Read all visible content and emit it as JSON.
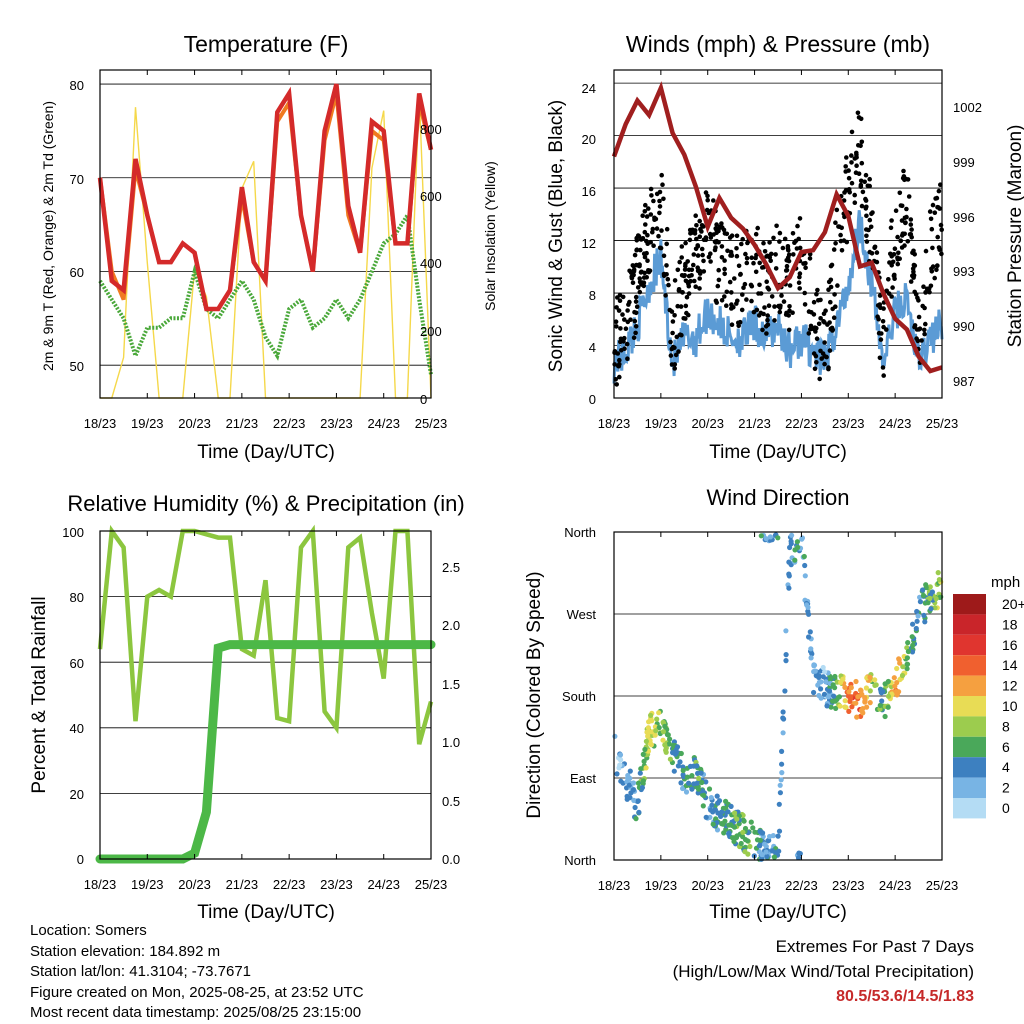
{
  "x_ticks": [
    "18/23",
    "19/23",
    "20/23",
    "21/23",
    "22/23",
    "23/23",
    "24/23",
    "25/23"
  ],
  "colors": {
    "temp2m": "#d42a2a",
    "temp9m": "#f07a20",
    "dewpoint": "#4aa83a",
    "solar": "#f5d84a",
    "sonic": "#5b9bd5",
    "gust": "#000000",
    "pressure": "#a01f1f",
    "rh": "#8cc63f",
    "rain": "#4cb847"
  },
  "charts": {
    "temperature": {
      "title": "Temperature (F)",
      "xlabel": "Time (Day/UTC)",
      "ylabel": "2m & 9m T (Red, Orange) & 2m Td (Green)",
      "y2label": "Solar Insolation (Yellow)",
      "yticks": [
        "50",
        "60",
        "70",
        "80"
      ],
      "y2ticks": [
        "0",
        "200",
        "400",
        "600",
        "800"
      ]
    },
    "winds": {
      "title": "Winds (mph) & Pressure (mb)",
      "xlabel": "Time (Day/UTC)",
      "ylabel": "Sonic Wind & Gust (Blue, Black)",
      "y2label": "Station Pressure (Maroon)",
      "yticks": [
        "0",
        "4",
        "8",
        "12",
        "16",
        "20",
        "24"
      ],
      "y2ticks": [
        "987",
        "990",
        "993",
        "996",
        "999",
        "1002"
      ]
    },
    "humidity": {
      "title": "Relative Humidity (%) & Precipitation (in)",
      "xlabel": "Time (Day/UTC)",
      "ylabel": "Percent & Total Rainfall",
      "yticks": [
        "0",
        "20",
        "40",
        "60",
        "80",
        "100"
      ],
      "y2ticks": [
        "0.0",
        "0.5",
        "1.0",
        "1.5",
        "2.0",
        "2.5"
      ]
    },
    "direction": {
      "title": "Wind Direction",
      "xlabel": "Time (Day/UTC)",
      "ylabel": "Direction (Colored By Speed)",
      "yticks": [
        "North",
        "East",
        "South",
        "West",
        "North"
      ],
      "legend_title": "mph",
      "legend_labels": [
        "20+",
        "18",
        "16",
        "14",
        "12",
        "10",
        "8",
        "6",
        "4",
        "2",
        "0"
      ],
      "legend_colors": [
        "#9e1a1a",
        "#c9252a",
        "#e0352f",
        "#f0602f",
        "#f5a040",
        "#e8dc55",
        "#9ccc4e",
        "#4aa85a",
        "#3d80c0",
        "#78b4e4",
        "#b4dcf4"
      ]
    }
  },
  "chart_data": [
    {
      "type": "line",
      "title": "Temperature (F)",
      "x": [
        0,
        0.25,
        0.5,
        0.75,
        1,
        1.25,
        1.5,
        1.75,
        2,
        2.25,
        2.5,
        2.75,
        3,
        3.25,
        3.5,
        3.75,
        4,
        4.25,
        4.5,
        4.75,
        5,
        5.25,
        5.5,
        5.75,
        6,
        6.25,
        6.5,
        6.75,
        7
      ],
      "xlim": [
        0,
        7
      ],
      "ylim": [
        46.5,
        81.5
      ],
      "y2lim": [
        0,
        970
      ],
      "series": [
        {
          "name": "2m T",
          "values": [
            70,
            59,
            58,
            72,
            66,
            61,
            61,
            63,
            62,
            56,
            56,
            58,
            69,
            61,
            59,
            77,
            79,
            66,
            60,
            75,
            80,
            67,
            62,
            76,
            75,
            63,
            63,
            79,
            73
          ]
        },
        {
          "name": "9m T",
          "values": [
            70,
            60,
            57,
            71,
            66,
            61,
            61,
            63,
            62,
            56,
            56,
            58,
            68,
            61,
            59,
            76,
            78,
            66,
            60,
            74,
            79,
            66,
            62,
            75,
            74,
            63,
            63,
            78,
            73
          ]
        },
        {
          "name": "2m Td",
          "values": [
            59,
            57,
            55,
            51,
            54,
            54,
            55,
            55,
            60,
            56,
            55,
            57,
            59,
            57,
            53,
            51,
            56,
            57,
            54,
            55,
            57,
            55,
            57,
            60,
            63,
            64,
            66,
            57,
            49
          ]
        },
        {
          "name": "Solar Insolation",
          "values": [
            0,
            0,
            120,
            860,
            400,
            0,
            0,
            0,
            380,
            300,
            0,
            0,
            620,
            700,
            0,
            0,
            0,
            0,
            0,
            0,
            0,
            0,
            0,
            680,
            850,
            0,
            0,
            900,
            0
          ]
        }
      ]
    },
    {
      "type": "line",
      "title": "Winds (mph) & Pressure (mb)",
      "x": [
        0,
        0.25,
        0.5,
        0.75,
        1,
        1.25,
        1.5,
        1.75,
        2,
        2.25,
        2.5,
        2.75,
        3,
        3.25,
        3.5,
        3.75,
        4,
        4.25,
        4.5,
        4.75,
        5,
        5.25,
        5.5,
        5.75,
        6,
        6.25,
        6.5,
        6.75,
        7
      ],
      "xlim": [
        0,
        7
      ],
      "ylim": [
        0,
        25
      ],
      "y2lim": [
        985.8,
        1004
      ],
      "series": [
        {
          "name": "Sonic Wind",
          "values": [
            2,
            3,
            5,
            8,
            10,
            2,
            4,
            4,
            6,
            5,
            4,
            4,
            5,
            4,
            5,
            3,
            4,
            3,
            2,
            5,
            8,
            13,
            8,
            2,
            6,
            7,
            2,
            4,
            5
          ]
        },
        {
          "name": "Gust",
          "values": [
            4,
            5,
            9,
            13,
            15,
            5,
            9,
            11,
            13,
            10,
            9,
            9,
            10,
            8,
            10,
            8,
            12,
            6,
            3,
            11,
            16,
            19,
            12,
            4,
            13,
            15,
            4,
            11,
            14
          ]
        },
        {
          "name": "Station Pressure",
          "values": [
            999.2,
            1001,
            1002.3,
            1001.5,
            1003,
            1000.5,
            999.3,
            997.5,
            995.3,
            996.9,
            995.8,
            995.2,
            994.3,
            993.2,
            991.9,
            992.5,
            993.9,
            994,
            995,
            997.1,
            995.9,
            993.1,
            993.3,
            991.6,
            990.2,
            989.6,
            988.1,
            987.3,
            987.5
          ]
        }
      ]
    },
    {
      "type": "line",
      "title": "Relative Humidity (%) & Precipitation (in)",
      "x": [
        0,
        0.25,
        0.5,
        0.75,
        1,
        1.25,
        1.5,
        1.75,
        2,
        2.25,
        2.5,
        2.75,
        3,
        3.25,
        3.5,
        3.75,
        4,
        4.25,
        4.5,
        4.75,
        5,
        5.25,
        5.5,
        5.75,
        6,
        6.25,
        6.5,
        6.75,
        7
      ],
      "xlim": [
        0,
        7
      ],
      "ylim": [
        0,
        100
      ],
      "y2lim": [
        0,
        2.8
      ],
      "series": [
        {
          "name": "Relative Humidity",
          "values": [
            64,
            100,
            95,
            42,
            80,
            82,
            80,
            100,
            100,
            99,
            98,
            98,
            64,
            62,
            85,
            43,
            42,
            95,
            100,
            45,
            40,
            95,
            98,
            75,
            55,
            100,
            100,
            35,
            48
          ]
        },
        {
          "name": "Total Precipitation",
          "values": [
            0,
            0,
            0,
            0,
            0,
            0,
            0,
            0,
            0.05,
            0.4,
            1.8,
            1.83,
            1.83,
            1.83,
            1.83,
            1.83,
            1.83,
            1.83,
            1.83,
            1.83,
            1.83,
            1.83,
            1.83,
            1.83,
            1.83,
            1.83,
            1.83,
            1.83,
            1.83
          ]
        }
      ]
    },
    {
      "type": "scatter",
      "title": "Wind Direction",
      "x": [
        0,
        0.25,
        0.5,
        0.75,
        1,
        1.25,
        1.5,
        1.75,
        2,
        2.25,
        2.5,
        2.75,
        3,
        3.25,
        3.5,
        3.75,
        4,
        4.25,
        4.5,
        4.75,
        5,
        5.25,
        5.5,
        5.75,
        6,
        6.25,
        6.5,
        6.75,
        7
      ],
      "xlim": [
        0,
        7
      ],
      "ylim": [
        0,
        360
      ],
      "series": [
        {
          "name": "Direction",
          "values": [
            120,
            90,
            60,
            140,
            150,
            120,
            90,
            100,
            60,
            50,
            40,
            30,
            20,
            10,
            5,
            340,
            350,
            200,
            190,
            185,
            180,
            175,
            185,
            170,
            195,
            220,
            270,
            290,
            300
          ]
        },
        {
          "name": "Speed",
          "values": [
            2,
            3,
            4,
            9,
            8,
            5,
            4,
            6,
            4,
            5,
            5,
            7,
            5,
            3,
            4,
            3,
            4,
            3,
            2,
            6,
            13,
            14,
            9,
            4,
            13,
            7,
            4,
            6,
            8
          ]
        }
      ]
    }
  ],
  "footer": {
    "location": "Location: Somers",
    "elevation": "Station elevation: 184.892 m",
    "latlon": "Station lat/lon: 41.3104; -73.7671",
    "created": "Figure created on Mon, 2025-08-25, at 23:52 UTC",
    "latest": "Most recent data timestamp: 2025/08/25 23:15:00"
  },
  "extremes": {
    "title": "Extremes For Past 7 Days",
    "subtitle": "(High/Low/Max Wind/Total Precipitation)",
    "values": "80.5/53.6/14.5/1.83"
  }
}
